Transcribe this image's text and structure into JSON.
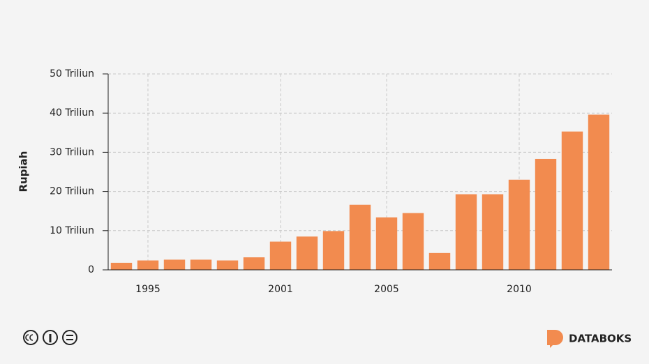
{
  "chart_data": {
    "type": "bar",
    "ylabel": "Rupiah",
    "categories": [
      null,
      "1995",
      null,
      null,
      null,
      null,
      "2001",
      null,
      null,
      null,
      "2005",
      null,
      null,
      null,
      null,
      "2010",
      null,
      null,
      null
    ],
    "values": [
      1.8,
      2.4,
      2.6,
      2.6,
      2.4,
      3.2,
      7.2,
      8.5,
      9.9,
      16.6,
      13.4,
      14.5,
      4.3,
      19.3,
      19.3,
      23.0,
      28.3,
      35.3,
      39.6
    ],
    "color": "#f28b4f",
    "ylim": [
      0,
      50
    ],
    "yticks": [
      0,
      {
        "value": 10,
        "label": "10 Triliun"
      },
      {
        "value": 20,
        "label": "20 Triliun"
      },
      {
        "value": 30,
        "label": "30 Triliun"
      },
      {
        "value": 40,
        "label": "40 Triliun"
      },
      {
        "value": 50,
        "label": "50 Triliun"
      }
    ],
    "grid": true
  },
  "brand": "DATABOKS"
}
